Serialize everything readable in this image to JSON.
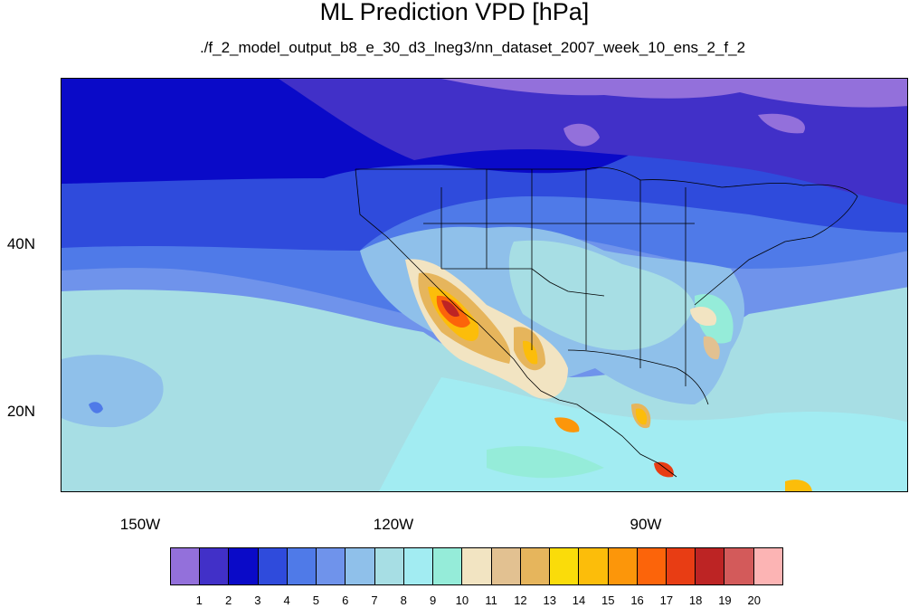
{
  "title": "ML Prediction VPD [hPa]",
  "subtitle": "./f_2_model_output_b8_e_30_d3_lneg3/nn_dataset_2007_week_10_ens_2_f_2",
  "map": {
    "projection": "cylindrical equidistant",
    "lon_range": [
      -160,
      -60
    ],
    "lat_range": [
      10,
      59
    ],
    "lat_labels": [
      "40N",
      "20N"
    ],
    "lon_labels": [
      "150W",
      "120W",
      "90W"
    ]
  },
  "colorbar": {
    "labels": [
      "1",
      "2",
      "3",
      "4",
      "5",
      "6",
      "7",
      "8",
      "9",
      "10",
      "11",
      "12",
      "13",
      "14",
      "15",
      "16",
      "17",
      "18",
      "19",
      "20"
    ],
    "colors": [
      "#9370db",
      "#4130c8",
      "#0a0ac8",
      "#2f4bdc",
      "#4f7ae8",
      "#6f93eb",
      "#8fc0ea",
      "#a7dee4",
      "#a2ecf2",
      "#95ecd9",
      "#f2e4c2",
      "#e2c191",
      "#e6b55c",
      "#fadc0a",
      "#fcbd0a",
      "#fc960a",
      "#fc640a",
      "#e83d14",
      "#bd2424",
      "#d35a5a",
      "#fcb4b4"
    ]
  }
}
